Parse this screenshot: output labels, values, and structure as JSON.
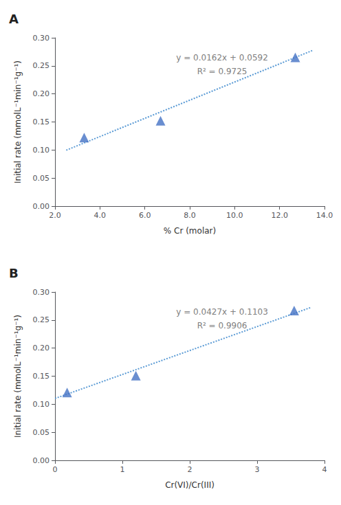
{
  "chart_data": [
    {
      "type": "scatter",
      "title": "A",
      "xlabel": "% Cr (molar)",
      "ylabel": "Initial rate (mmolL⁻¹min⁻¹g⁻¹)",
      "series": [
        {
          "type": "scatter",
          "marker": "triangle",
          "color": "#4472C4",
          "x": [
            3.3,
            6.7,
            12.7
          ],
          "values": [
            0.122,
            0.152,
            0.265
          ]
        },
        {
          "type": "line",
          "line_style": "dotted",
          "color": "#5B9BD5",
          "x": [
            2.5,
            13.5
          ],
          "values": [
            0.0997,
            0.2779
          ]
        }
      ],
      "annotations": [
        {
          "text": "y = 0.0162x + 0.0592",
          "color": "#808080"
        },
        {
          "text": "R² = 0.9725",
          "color": "#808080"
        }
      ],
      "xlim": [
        2.0,
        14.0
      ],
      "xticks": [
        {
          "value": 2,
          "label": "2.0"
        },
        {
          "value": 4,
          "label": "4.0"
        },
        {
          "value": 6,
          "label": "6.0"
        },
        {
          "value": 8,
          "label": "8.0"
        },
        {
          "value": 10,
          "label": "10.0"
        },
        {
          "value": 12,
          "label": "12.0"
        },
        {
          "value": 14,
          "label": "14.0"
        }
      ],
      "ylim": [
        0.0,
        0.3
      ],
      "yticks": [
        {
          "value": 0,
          "label": "0.00"
        },
        0.05,
        {
          "value": 0.1,
          "label": "0.10"
        },
        0.15,
        {
          "value": 0.2,
          "label": "0.20"
        },
        0.25,
        {
          "value": 0.3,
          "label": "0.30"
        }
      ],
      "grid": false
    },
    {
      "type": "scatter",
      "title": "B",
      "xlabel": "Cr(VI)/Cr(III)",
      "ylabel": "Initial rate (mmolL⁻¹min⁻¹g⁻¹)",
      "series": [
        {
          "type": "scatter",
          "marker": "triangle",
          "color": "#4472C4",
          "x": [
            0.18,
            1.2,
            3.55
          ],
          "values": [
            0.121,
            0.151,
            0.267
          ]
        },
        {
          "type": "line",
          "line_style": "dotted",
          "color": "#5B9BD5",
          "x": [
            0.0,
            3.8
          ],
          "values": [
            0.1103,
            0.27256
          ]
        }
      ],
      "annotations": [
        {
          "text": "y = 0.0427x + 0.1103",
          "color": "#808080"
        },
        {
          "text": "R² = 0.9906",
          "color": "#808080"
        }
      ],
      "xlim": [
        0.0,
        4.0
      ],
      "xticks": [
        0,
        1,
        2,
        3,
        4
      ],
      "ylim": [
        0.0,
        0.3
      ],
      "yticks": [
        {
          "value": 0,
          "label": "0.00"
        },
        0.05,
        {
          "value": 0.1,
          "label": "0.10"
        },
        0.15,
        {
          "value": 0.2,
          "label": "0.20"
        },
        0.25,
        {
          "value": 0.3,
          "label": "0.30"
        }
      ],
      "grid": false
    }
  ]
}
